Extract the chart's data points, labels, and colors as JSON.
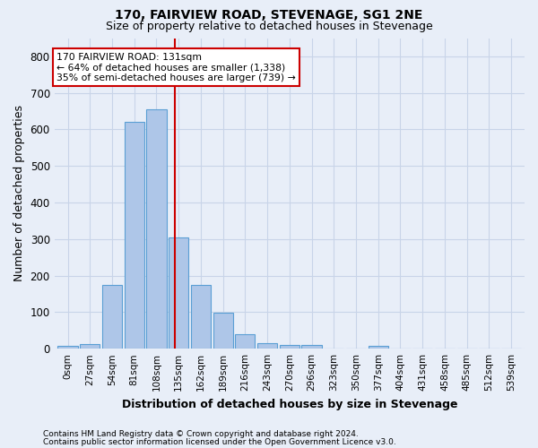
{
  "title1": "170, FAIRVIEW ROAD, STEVENAGE, SG1 2NE",
  "title2": "Size of property relative to detached houses in Stevenage",
  "xlabel": "Distribution of detached houses by size in Stevenage",
  "ylabel": "Number of detached properties",
  "bar_labels": [
    "0sqm",
    "27sqm",
    "54sqm",
    "81sqm",
    "108sqm",
    "135sqm",
    "162sqm",
    "189sqm",
    "216sqm",
    "243sqm",
    "270sqm",
    "296sqm",
    "323sqm",
    "350sqm",
    "377sqm",
    "404sqm",
    "431sqm",
    "458sqm",
    "485sqm",
    "512sqm",
    "539sqm"
  ],
  "bar_values": [
    8,
    13,
    175,
    620,
    655,
    305,
    175,
    98,
    40,
    15,
    10,
    10,
    0,
    0,
    8,
    0,
    0,
    0,
    0,
    0,
    0
  ],
  "bar_color": "#aec6e8",
  "bar_edge_color": "#5a9fd4",
  "ylim": [
    0,
    850
  ],
  "yticks": [
    0,
    100,
    200,
    300,
    400,
    500,
    600,
    700,
    800
  ],
  "property_line_idx": 4.85,
  "property_line_color": "#cc0000",
  "annotation_text": "170 FAIRVIEW ROAD: 131sqm\n← 64% of detached houses are smaller (1,338)\n35% of semi-detached houses are larger (739) →",
  "annotation_box_color": "#ffffff",
  "annotation_box_edgecolor": "#cc0000",
  "footer1": "Contains HM Land Registry data © Crown copyright and database right 2024.",
  "footer2": "Contains public sector information licensed under the Open Government Licence v3.0.",
  "background_color": "#e8eef8",
  "grid_color": "#c8d4e8",
  "title1_fontsize": 10,
  "title2_fontsize": 9,
  "ylabel_fontsize": 9,
  "xlabel_fontsize": 9
}
